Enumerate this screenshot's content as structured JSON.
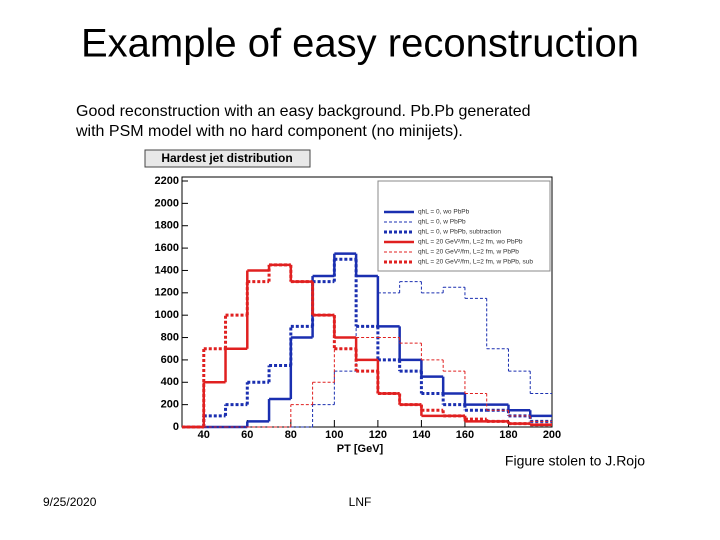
{
  "title": "Example of easy reconstruction",
  "subtitle": [
    "Good reconstruction with an easy background.  Pb.Pb generated",
    "with PSM model with no hard component (no minijets)."
  ],
  "caption": "Figure stolen to J.Rojo",
  "footer": {
    "date": "9/25/2020",
    "center": "LNF"
  },
  "chart_data": {
    "type": "histogram",
    "title": "Hardest jet distribution",
    "xlabel": "PT [GeV]",
    "bins": [
      30,
      40,
      50,
      60,
      70,
      80,
      90,
      100,
      110,
      120,
      130,
      140,
      150,
      160,
      170,
      180,
      190,
      200
    ],
    "xlim": [
      30,
      200
    ],
    "xticks": [
      40,
      60,
      80,
      100,
      120,
      140,
      160,
      180,
      200
    ],
    "ylim": [
      0,
      2200
    ],
    "yticks": [
      0,
      200,
      400,
      600,
      800,
      1000,
      1200,
      1400,
      1600,
      1800,
      2000,
      2200
    ],
    "series": [
      {
        "name": "qhL = 0, wo PbPb",
        "color": "#1a2fb0",
        "dash": "solid",
        "values": [
          0,
          0,
          0,
          50,
          250,
          800,
          1350,
          1550,
          1350,
          900,
          600,
          450,
          300,
          200,
          200,
          150,
          100
        ]
      },
      {
        "name": "qhL = 0, w PbPb",
        "color": "#1a2fb0",
        "dash": "dashed",
        "values": [
          0,
          0,
          0,
          0,
          0,
          0,
          200,
          500,
          900,
          1200,
          1300,
          1200,
          1250,
          1150,
          700,
          500,
          300
        ]
      },
      {
        "name": "qhL = 0, w PbPb, subtraction",
        "color": "#1a2fb0",
        "dash": "dotted",
        "values": [
          0,
          100,
          200,
          400,
          550,
          900,
          1300,
          1500,
          900,
          600,
          500,
          300,
          200,
          150,
          150,
          100,
          50
        ]
      },
      {
        "name": "qhL = 20 GeV²/fm, L=2 fm, wo PbPb",
        "color": "#e02020",
        "dash": "solid",
        "values": [
          0,
          400,
          700,
          1400,
          1450,
          1300,
          1000,
          800,
          600,
          300,
          200,
          100,
          100,
          50,
          50,
          30,
          20
        ]
      },
      {
        "name": "qhL = 20 GeV²/fm, L=2 fm, w PbPb",
        "color": "#e02020",
        "dash": "dashed",
        "values": [
          0,
          0,
          0,
          0,
          0,
          200,
          400,
          700,
          800,
          800,
          750,
          600,
          500,
          300,
          150,
          100,
          50
        ]
      },
      {
        "name": "qhL = 20 GeV²/fm, L=2 fm, w PbPb, sub",
        "color": "#e02020",
        "dash": "dotted",
        "values": [
          0,
          700,
          1000,
          1300,
          1450,
          1300,
          1000,
          700,
          500,
          300,
          200,
          150,
          100,
          70,
          50,
          30,
          20
        ]
      }
    ]
  }
}
